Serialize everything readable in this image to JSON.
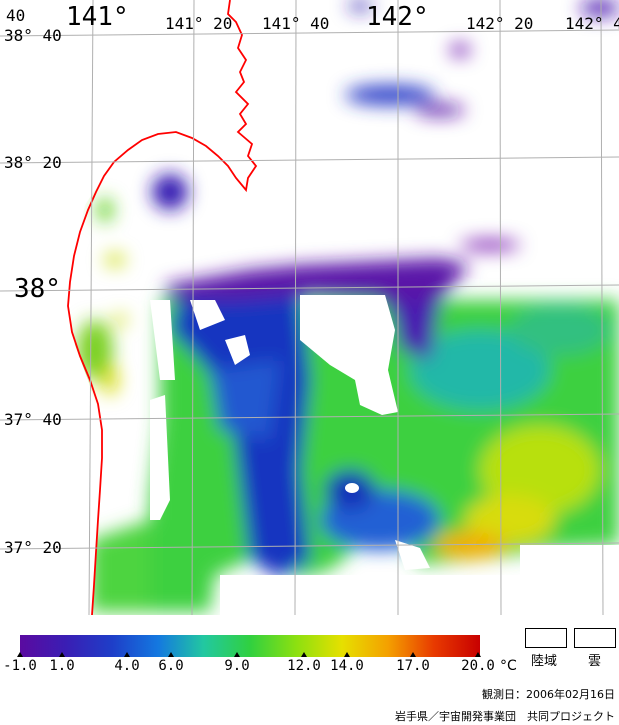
{
  "map": {
    "lon_labels": [
      "141°",
      "141° 20",
      "141° 40",
      "142°",
      "142° 20",
      "142° 4"
    ],
    "top_left_label": "40",
    "lat_labels": [
      "38° 40",
      "38° 20",
      "38°",
      "37° 40",
      "37° 20"
    ],
    "land_color": "#ffffff",
    "coast_color": "#ff0000",
    "grid_color": "#b0b0b0"
  },
  "colorbar": {
    "ticks": [
      "-1.0",
      "1.0",
      "4.0",
      "6.0",
      "9.0",
      "12.0",
      "14.0",
      "17.0",
      "20.0"
    ],
    "unit": "°C",
    "stops": [
      "#5a0aa0",
      "#3a1eb4",
      "#1e3ec8",
      "#1478e0",
      "#22c8a0",
      "#30d040",
      "#8ce010",
      "#e6e000",
      "#f4a000",
      "#e83a00",
      "#c80000"
    ]
  },
  "legend": {
    "land": "陸域",
    "cloud": "雲"
  },
  "footer": {
    "observation_date": "観測日：2006年02月16日",
    "credit": "岩手県／宇宙開発事業団　共同プロジェクト"
  }
}
